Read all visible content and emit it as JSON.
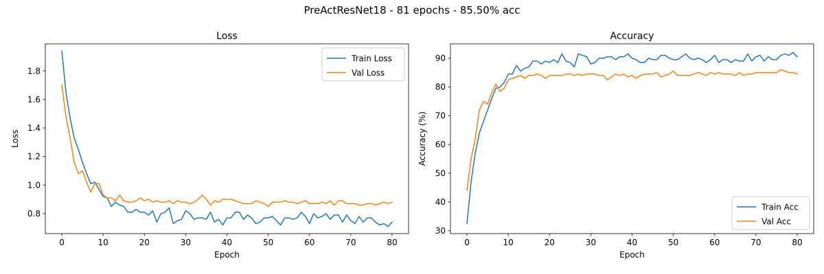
{
  "figure": {
    "suptitle": "PreActResNet18 - 81 epochs - 85.50% acc"
  },
  "chart_data": [
    {
      "type": "line",
      "title": "Loss",
      "xlabel": "Epoch",
      "ylabel": "Loss",
      "xlim": [
        -4,
        84
      ],
      "ylim": [
        0.66,
        1.99
      ],
      "xticks": [
        0,
        10,
        20,
        30,
        40,
        50,
        60,
        70,
        80
      ],
      "yticks": [
        0.8,
        1.0,
        1.2,
        1.4,
        1.6,
        1.8
      ],
      "ytick_labels": [
        "0.8",
        "1.0",
        "1.2",
        "1.4",
        "1.6",
        "1.8"
      ],
      "legend_position": "upper right",
      "series": [
        {
          "name": "Train Loss",
          "color": "#1f77b4",
          "values": [
            1.94,
            1.65,
            1.47,
            1.33,
            1.25,
            1.16,
            1.08,
            1.01,
            1.02,
            0.97,
            0.92,
            0.91,
            0.85,
            0.88,
            0.86,
            0.85,
            0.81,
            0.81,
            0.83,
            0.81,
            0.81,
            0.79,
            0.82,
            0.74,
            0.8,
            0.81,
            0.84,
            0.73,
            0.75,
            0.76,
            0.82,
            0.8,
            0.76,
            0.77,
            0.77,
            0.76,
            0.81,
            0.74,
            0.76,
            0.72,
            0.77,
            0.77,
            0.81,
            0.81,
            0.76,
            0.79,
            0.77,
            0.73,
            0.74,
            0.77,
            0.77,
            0.78,
            0.75,
            0.72,
            0.77,
            0.77,
            0.76,
            0.77,
            0.81,
            0.78,
            0.73,
            0.8,
            0.77,
            0.78,
            0.8,
            0.76,
            0.79,
            0.79,
            0.74,
            0.79,
            0.75,
            0.73,
            0.78,
            0.74,
            0.77,
            0.77,
            0.74,
            0.72,
            0.73,
            0.71,
            0.74
          ]
        },
        {
          "name": "Val Loss",
          "color": "#ff7f0e",
          "values": [
            1.7,
            1.48,
            1.33,
            1.16,
            1.08,
            1.1,
            1.02,
            0.95,
            1.01,
            1.01,
            0.93,
            0.91,
            0.91,
            0.89,
            0.93,
            0.89,
            0.88,
            0.88,
            0.89,
            0.91,
            0.89,
            0.9,
            0.88,
            0.89,
            0.88,
            0.88,
            0.89,
            0.87,
            0.89,
            0.88,
            0.88,
            0.87,
            0.88,
            0.9,
            0.93,
            0.9,
            0.86,
            0.89,
            0.88,
            0.9,
            0.9,
            0.9,
            0.89,
            0.88,
            0.87,
            0.87,
            0.87,
            0.89,
            0.88,
            0.87,
            0.85,
            0.88,
            0.88,
            0.88,
            0.89,
            0.88,
            0.88,
            0.87,
            0.88,
            0.89,
            0.87,
            0.87,
            0.87,
            0.88,
            0.87,
            0.89,
            0.86,
            0.89,
            0.89,
            0.87,
            0.87,
            0.87,
            0.86,
            0.86,
            0.87,
            0.87,
            0.86,
            0.87,
            0.88,
            0.87,
            0.88
          ]
        }
      ]
    },
    {
      "type": "line",
      "title": "Accuracy",
      "xlabel": "Epoch",
      "ylabel": "Accuracy (%)",
      "xlim": [
        -4,
        84
      ],
      "ylim": [
        29,
        95
      ],
      "xticks": [
        0,
        10,
        20,
        30,
        40,
        50,
        60,
        70,
        80
      ],
      "yticks": [
        30,
        40,
        50,
        60,
        70,
        80,
        90
      ],
      "ytick_labels": [
        "30",
        "40",
        "50",
        "60",
        "70",
        "80",
        "90"
      ],
      "legend_position": "lower right",
      "series": [
        {
          "name": "Train Acc",
          "color": "#1f77b4",
          "values": [
            32.5,
            47,
            57,
            64,
            68,
            72,
            76,
            79.5,
            80,
            81.5,
            84.5,
            84.5,
            87.5,
            85.5,
            86.5,
            87,
            89,
            89,
            88,
            89,
            88.5,
            89.5,
            88.5,
            91.5,
            89,
            88.5,
            87,
            91.5,
            91,
            90.5,
            88,
            88.5,
            90,
            90,
            90.5,
            90.5,
            89.5,
            90.5,
            90.5,
            91.5,
            90,
            89.5,
            88.5,
            88.5,
            90,
            89.5,
            89.5,
            91,
            91,
            90,
            89.5,
            89.5,
            90.5,
            91.5,
            90,
            89.5,
            90,
            89.5,
            88.5,
            89.5,
            91,
            88.5,
            89.5,
            89.5,
            88.5,
            89.5,
            89,
            89,
            91.5,
            89,
            90.5,
            91,
            89,
            90.5,
            89.5,
            89.5,
            91,
            91.5,
            91,
            92,
            90.5
          ]
        },
        {
          "name": "Val Acc",
          "color": "#ff7f0e",
          "values": [
            44,
            55,
            62,
            72,
            75,
            74,
            78,
            81,
            78.5,
            79.5,
            82.5,
            83,
            83.5,
            84,
            83,
            84,
            84,
            84.5,
            84,
            83,
            84,
            84,
            84,
            84,
            84.5,
            84.5,
            84,
            84.5,
            84,
            84.5,
            84.5,
            84.5,
            84,
            84,
            82.5,
            83.5,
            84.5,
            84,
            84.5,
            83.5,
            84,
            83,
            84,
            84.5,
            84.5,
            84.5,
            85,
            83.5,
            84,
            84.5,
            85.5,
            84,
            84,
            84,
            84,
            84.5,
            85,
            84.5,
            84,
            85,
            84.5,
            85,
            84.5,
            84.5,
            84.5,
            84,
            85,
            84,
            84.5,
            84.5,
            85,
            85,
            85,
            85,
            85,
            85,
            86,
            85.5,
            85,
            85,
            84.5
          ]
        }
      ]
    }
  ]
}
